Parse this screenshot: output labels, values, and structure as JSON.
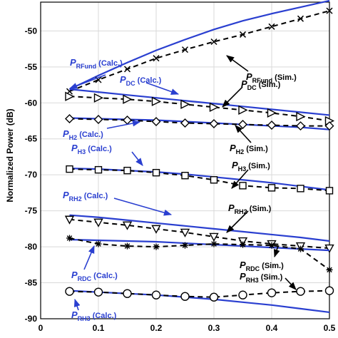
{
  "chart_data": {
    "type": "line",
    "title": "",
    "xlabel": "",
    "ylabel": "Normalized Power (dB)",
    "xlim": [
      0,
      0.5
    ],
    "ylim": [
      -90,
      -46
    ],
    "x_ticks": [
      0,
      0.1,
      0.2,
      0.3,
      0.4,
      0.5
    ],
    "x_tick_labels": [
      "0",
      "0.1",
      "0.2",
      "0.3",
      "0.4",
      "0.5"
    ],
    "y_ticks": [
      -90,
      -85,
      -80,
      -75,
      -70,
      -65,
      -60,
      -55,
      -50
    ],
    "y_tick_labels": [
      "-90",
      "-85",
      "-80",
      "-75",
      "-70",
      "-65",
      "-60",
      "-55",
      "-50"
    ],
    "grid": true,
    "colors": {
      "calc": "#2a3fd0",
      "sim": "#000000",
      "grid": "#d9d9d9"
    },
    "calc_x": [
      0.05,
      0.1,
      0.15,
      0.2,
      0.25,
      0.3,
      0.35,
      0.4,
      0.45,
      0.5
    ],
    "sim_x": [
      0.05,
      0.1,
      0.15,
      0.2,
      0.25,
      0.3,
      0.35,
      0.4,
      0.45,
      0.5
    ],
    "series": [
      {
        "kind": "calc",
        "values": [
          -58.1,
          -56.2,
          -54.4,
          -52.7,
          -51.2,
          -49.8,
          -48.6,
          -47.6,
          -46.7,
          -45.8
        ]
      },
      {
        "kind": "sim",
        "marker": "x",
        "values": [
          -58.4,
          -56.8,
          -55.3,
          -53.8,
          -52.6,
          -51.5,
          -50.5,
          -49.4,
          -48.3,
          -47.2
        ]
      },
      {
        "kind": "calc",
        "values": [
          -58.1,
          -58.5,
          -58.9,
          -59.3,
          -59.7,
          -60.1,
          -60.5,
          -60.9,
          -61.3,
          -61.7
        ]
      },
      {
        "kind": "sim",
        "marker": "triangle-right",
        "values": [
          -59.1,
          -59.3,
          -59.5,
          -59.8,
          -60.2,
          -60.6,
          -61.0,
          -61.4,
          -61.9,
          -62.5
        ]
      },
      {
        "kind": "calc",
        "values": [
          -62.1,
          -62.2,
          -62.3,
          -62.4,
          -62.6,
          -62.8,
          -63.0,
          -63.2,
          -63.4,
          -63.7
        ]
      },
      {
        "kind": "sim",
        "marker": "diamond",
        "values": [
          -62.2,
          -62.3,
          -62.4,
          -62.6,
          -62.8,
          -62.9,
          -63.0,
          -63.1,
          -63.2,
          -63.2
        ]
      },
      {
        "kind": "calc",
        "values": [
          -69.1,
          -69.2,
          -69.4,
          -69.6,
          -69.9,
          -70.3,
          -70.7,
          -71.1,
          -71.6,
          -72.1
        ]
      },
      {
        "kind": "sim",
        "marker": "square",
        "values": [
          -69.2,
          -69.3,
          -69.4,
          -69.7,
          -70.1,
          -70.7,
          -71.5,
          -71.8,
          -71.9,
          -72.2
        ]
      },
      {
        "kind": "calc",
        "values": [
          -75.6,
          -75.9,
          -76.3,
          -76.7,
          -77.1,
          -77.5,
          -77.9,
          -78.3,
          -78.7,
          -79.2
        ]
      },
      {
        "kind": "sim",
        "marker": "triangle-down",
        "values": [
          -76.2,
          -76.6,
          -77.0,
          -77.5,
          -78.0,
          -78.6,
          -79.2,
          -79.6,
          -79.9,
          -80.2
        ]
      },
      {
        "kind": "calc",
        "values": [
          -79.0,
          -79.1,
          -79.2,
          -79.3,
          -79.5,
          -79.7,
          -79.9,
          -80.1,
          -80.3,
          -80.5
        ]
      },
      {
        "kind": "sim",
        "marker": "asterisk",
        "values": [
          -78.8,
          -79.6,
          -79.9,
          -80.0,
          -79.8,
          -79.6,
          -79.7,
          -79.8,
          -80.3,
          -83.2
        ]
      },
      {
        "kind": "calc",
        "values": [
          -86.1,
          -86.3,
          -86.5,
          -86.7,
          -87.0,
          -87.3,
          -87.7,
          -88.1,
          -88.6,
          -89.1
        ]
      },
      {
        "kind": "sim",
        "marker": "circle",
        "values": [
          -86.2,
          -86.3,
          -86.5,
          -86.7,
          -86.9,
          -87.0,
          -86.7,
          -86.4,
          -86.2,
          -86.1
        ]
      }
    ],
    "annotations": {
      "rfund_calc": {
        "sym": "P",
        "sub": "RFund",
        "text": "(Calc.)"
      },
      "rfund_sim": {
        "sym": "P",
        "sub": "RFund",
        "text": "(Sim.)"
      },
      "dc_calc": {
        "sym": "P",
        "sub": "DC",
        "text": "(Calc.)"
      },
      "dc_sim": {
        "sym": "P",
        "sub": "DC",
        "text": "(Sim.)"
      },
      "h2_calc": {
        "sym": "P",
        "sub": "H2",
        "text": "(Calc.)"
      },
      "h3_calc": {
        "sym": "P",
        "sub": "H3",
        "text": "(Calc.)"
      },
      "h2_sim": {
        "sym": "P",
        "sub": "H2",
        "text": "(Sim.)"
      },
      "h3_sim": {
        "sym": "P",
        "sub": "H3",
        "text": "(Sim.)"
      },
      "rh2_calc": {
        "sym": "P",
        "sub": "RH2",
        "text": "(Calc.)"
      },
      "rh2_sim": {
        "sym": "P",
        "sub": "RH2",
        "text": "(Sim.)"
      },
      "rdc_calc": {
        "sym": "P",
        "sub": "RDC",
        "text": "(Calc.)"
      },
      "rdc_sim": {
        "sym": "P",
        "sub": "RDC",
        "text": "(Sim.)"
      },
      "rh3_sim": {
        "sym": "P",
        "sub": "RH3",
        "text": "(Sim.)"
      },
      "rh3_calc": {
        "sym": "P",
        "sub": "RH3",
        "text": "(Calc.)"
      }
    }
  }
}
